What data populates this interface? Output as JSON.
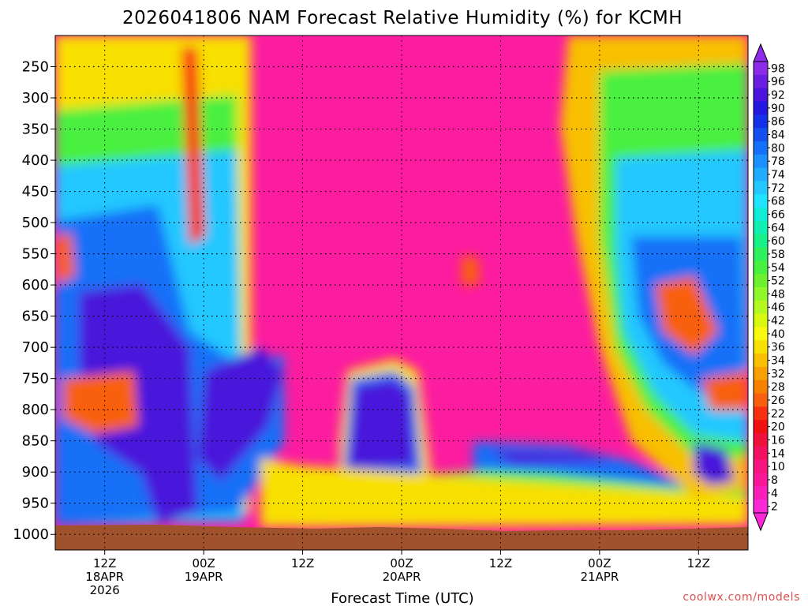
{
  "chart_data": {
    "type": "heatmap",
    "title": "2026041806 NAM Forecast Relative Humidity (%) for KCMH",
    "xlabel": "Forecast Time (UTC)",
    "ylabel": "",
    "y_axis": {
      "ticks": [
        250,
        300,
        350,
        400,
        450,
        500,
        550,
        600,
        650,
        700,
        750,
        800,
        850,
        900,
        950,
        1000
      ],
      "labels": [
        "250",
        "300",
        "350",
        "400",
        "450",
        "500",
        "550",
        "600",
        "650",
        "700",
        "750",
        "800",
        "850",
        "900",
        "950",
        "1000"
      ],
      "range": [
        200,
        1025
      ],
      "inverted": true
    },
    "x_axis": {
      "range_hours": [
        6,
        90
      ],
      "ticks": [
        {
          "hour": 12,
          "lines": [
            "12Z",
            "18APR",
            "2026"
          ]
        },
        {
          "hour": 24,
          "lines": [
            "00Z",
            "19APR"
          ]
        },
        {
          "hour": 36,
          "lines": [
            "12Z"
          ]
        },
        {
          "hour": 48,
          "lines": [
            "00Z",
            "20APR"
          ]
        },
        {
          "hour": 60,
          "lines": [
            "12Z"
          ]
        },
        {
          "hour": 72,
          "lines": [
            "00Z",
            "21APR"
          ]
        },
        {
          "hour": 84,
          "lines": [
            "12Z"
          ]
        }
      ]
    },
    "grid": true,
    "colorbar": {
      "labels": [
        "98",
        "96",
        "92",
        "90",
        "86",
        "84",
        "80",
        "78",
        "74",
        "72",
        "68",
        "66",
        "64",
        "60",
        "58",
        "54",
        "52",
        "48",
        "46",
        "42",
        "40",
        "36",
        "34",
        "32",
        "28",
        "26",
        "22",
        "20",
        "16",
        "14",
        "10",
        "8",
        "4",
        "2"
      ],
      "colors": [
        "#8c2ce8",
        "#6c1ee0",
        "#4a14dc",
        "#2418e0",
        "#1430e8",
        "#1450f0",
        "#1470f8",
        "#1c90ff",
        "#20acff",
        "#24c8ff",
        "#20e4ff",
        "#10ecd8",
        "#10f0b0",
        "#18f088",
        "#30f060",
        "#48f040",
        "#6cf030",
        "#90f828",
        "#b4f820",
        "#d8f810",
        "#f8f810",
        "#f8e000",
        "#f8c000",
        "#f8a000",
        "#f88000",
        "#f86010",
        "#f83010",
        "#f01010",
        "#f0103c",
        "#f41060",
        "#f81480",
        "#f81898",
        "#f820b8",
        "#fc28d8"
      ],
      "arrows": "both"
    },
    "terrain_color": "#a0522d",
    "surface_pressure_hPa": 970,
    "credit": "coolwx.com/models"
  }
}
